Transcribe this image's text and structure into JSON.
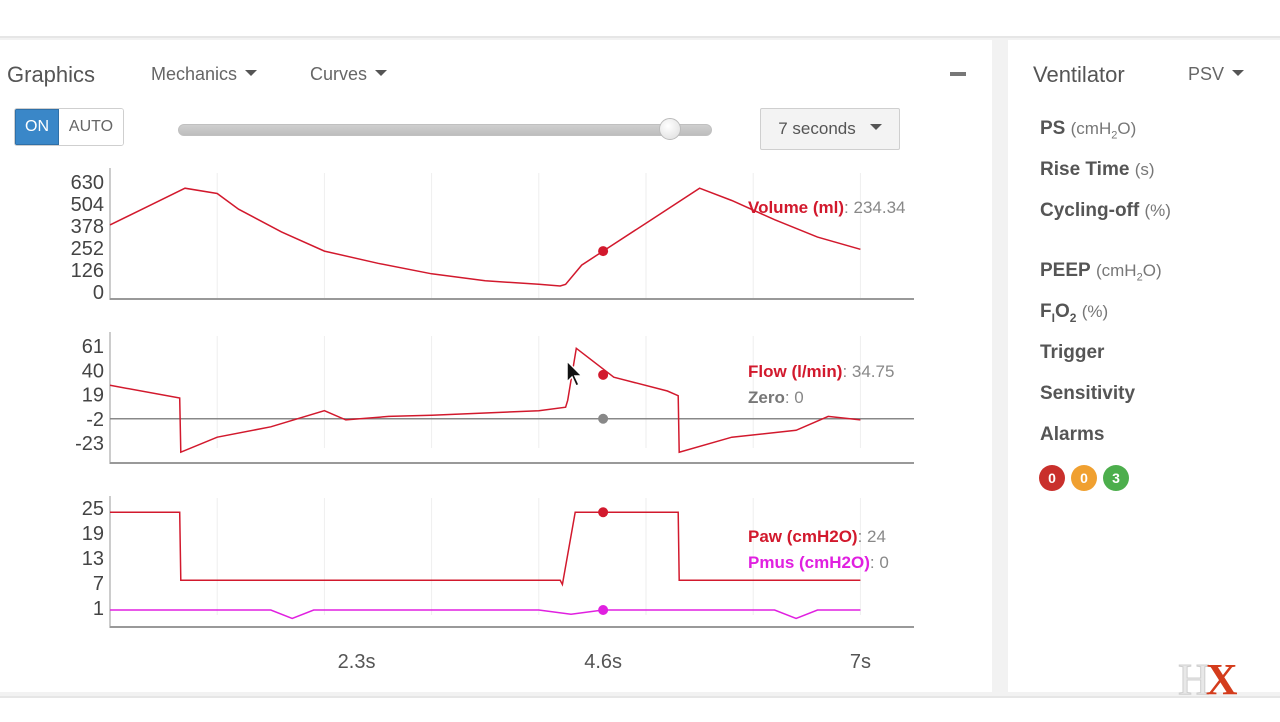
{
  "graphics": {
    "title": "Graphics",
    "mechanics_label": "Mechanics",
    "curves_label": "Curves",
    "toggle_on": "ON",
    "toggle_auto": "AUTO",
    "slider_value": 0.94,
    "seconds_select": "7 seconds"
  },
  "chart_data": [
    {
      "type": "line",
      "name": "volume",
      "yticks": [
        "630",
        "504",
        "378",
        "252",
        "126",
        "0"
      ],
      "ylim": [
        0,
        630
      ],
      "xlim": [
        0,
        7.5
      ],
      "series": [
        {
          "name": "Volume (ml)",
          "value": "234.34",
          "color": "#d2192d",
          "x": [
            0,
            0.3,
            0.7,
            1.0,
            1.2,
            1.6,
            2.0,
            2.5,
            3.0,
            3.5,
            4.0,
            4.2,
            4.25,
            4.4,
            4.6,
            5.0,
            5.5,
            5.8,
            6.2,
            6.6,
            7.0
          ],
          "y": [
            390,
            480,
            600,
            570,
            480,
            350,
            240,
            170,
            110,
            70,
            50,
            40,
            50,
            160,
            240,
            400,
            600,
            530,
            420,
            320,
            250
          ]
        }
      ],
      "marker": {
        "x": 4.6,
        "y": 240
      }
    },
    {
      "type": "line",
      "name": "flow",
      "yticks": [
        "61",
        "40",
        "19",
        "-2",
        "-23"
      ],
      "ylim": [
        -23,
        61
      ],
      "xlim": [
        0,
        7.5
      ],
      "series": [
        {
          "name": "Flow (l/min)",
          "value": "34.75",
          "color": "#d2192d",
          "x": [
            0,
            0.65,
            0.66,
            1.0,
            1.5,
            2.0,
            2.2,
            2.6,
            3.0,
            3.5,
            4.0,
            4.25,
            4.27,
            4.35,
            4.7,
            5.2,
            5.3,
            5.31,
            5.8,
            6.4,
            6.7,
            7.0
          ],
          "y": [
            27,
            16,
            -31,
            -18,
            -9,
            5,
            -3,
            0,
            1,
            3,
            5,
            8,
            14,
            59,
            34,
            22,
            18,
            -31,
            -18,
            -12,
            0,
            -3
          ]
        },
        {
          "name": "Zero",
          "value": "0",
          "color": "#888888",
          "x": [
            0,
            7.5
          ],
          "y": [
            -2,
            -2
          ]
        }
      ],
      "marker": {
        "x": 4.6,
        "y": 36
      },
      "zero_marker": {
        "x": 4.6,
        "y": -2
      }
    },
    {
      "type": "line",
      "name": "pressure",
      "yticks": [
        "25",
        "19",
        "13",
        "7",
        "1"
      ],
      "ylim": [
        1,
        25
      ],
      "xlim": [
        0,
        7.5
      ],
      "series": [
        {
          "name": "Paw (cmH2O)",
          "value": "24",
          "color": "#d2192d",
          "x": [
            0,
            0.65,
            0.66,
            4.2,
            4.22,
            4.34,
            5.3,
            5.31,
            7.0
          ],
          "y": [
            24,
            24,
            8,
            8,
            7,
            24,
            24,
            8,
            8
          ]
        },
        {
          "name": "Pmus (cmH2O)",
          "value": "0",
          "color": "#e020e0",
          "x": [
            0,
            1.5,
            1.7,
            1.9,
            3.8,
            4.0,
            4.3,
            4.6,
            6.2,
            6.4,
            6.6,
            7.0
          ],
          "y": [
            1,
            1,
            -1,
            1,
            1,
            1,
            0,
            1,
            1,
            -1,
            1,
            1
          ]
        }
      ],
      "marker": {
        "x": 4.6,
        "y": 24
      },
      "pmus_marker": {
        "x": 4.6,
        "y": 1
      }
    }
  ],
  "xticks": [
    "2.3s",
    "4.6s",
    "7s"
  ],
  "xtick_values": [
    2.3,
    4.6,
    7.0
  ],
  "ventilator": {
    "title": "Ventilator",
    "mode": "PSV",
    "ps": "PS",
    "ps_unit_pre": "(cmH",
    "ps_unit_post": "O)",
    "rise_time": "Rise Time",
    "rise_time_unit": "(s)",
    "cycling_off": "Cycling-off",
    "cycling_off_unit": "(%)",
    "peep": "PEEP",
    "peep_unit_pre": "(cmH",
    "peep_unit_post": "O)",
    "fio2_f": "F",
    "fio2_i": "I",
    "fio2_o": "O",
    "fio2_unit": "(%)",
    "trigger": "Trigger",
    "sensitivity": "Sensitivity",
    "alarms": "Alarms",
    "alarm_counts": [
      {
        "value": "0",
        "color": "#c9302c"
      },
      {
        "value": "0",
        "color": "#f0a030"
      },
      {
        "value": "3",
        "color": "#4cae4c"
      }
    ]
  },
  "logo": {
    "h": "H",
    "x": "X"
  }
}
